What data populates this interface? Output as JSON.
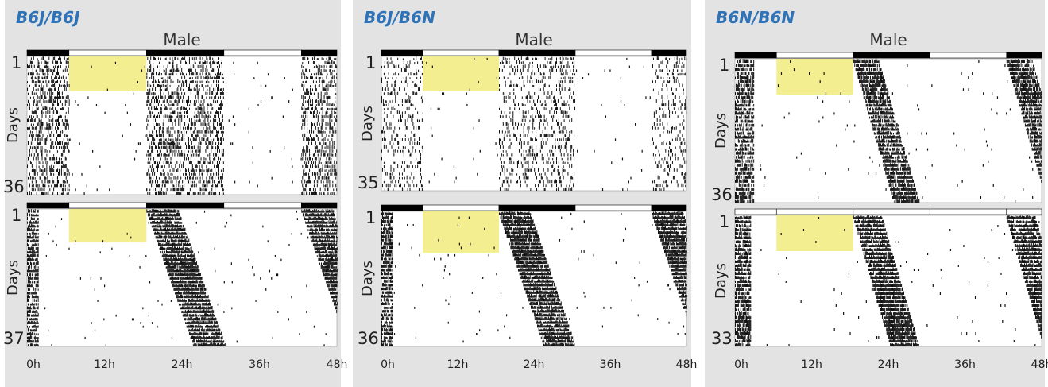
{
  "chart_data": {
    "type": "actogram",
    "x_ticks": [
      "0h",
      "12h",
      "24h",
      "36h",
      "48h"
    ],
    "x_tick_hours": [
      0,
      12,
      24,
      36,
      48
    ],
    "x_range_hours": [
      0,
      48
    ],
    "ylabel": "Days",
    "condition_label": "Male",
    "colors": {
      "genotype_title": "#2e73b8",
      "activity": "#111111",
      "highlight": "#f1ec7d",
      "dark_bar": "#000000",
      "light_bar": "#ffffff",
      "panel_background": "#e3e3e3"
    },
    "panels": [
      {
        "genotype": "B6J/B6J",
        "plots": [
          {
            "first_day": "1",
            "last_day": "36",
            "days": 36,
            "lighting_bar": [
              [
                0,
                6.5,
                "dark"
              ],
              [
                6.5,
                18.5,
                "light"
              ],
              [
                18.5,
                30.5,
                "dark"
              ],
              [
                30.5,
                42.5,
                "light"
              ],
              [
                42.5,
                48,
                "dark"
              ]
            ],
            "highlight": {
              "hours": [
                6.5,
                18.5
              ],
              "days": [
                1,
                9
              ]
            },
            "activity_blocks": [
              [
                18.5,
                30.5,
                0.35,
                0.0
              ],
              [
                42.5,
                48,
                0.35,
                0.0
              ],
              [
                0,
                6.5,
                0.35,
                0.0
              ]
            ]
          },
          {
            "first_day": "1",
            "last_day": "37",
            "days": 37,
            "lighting_bar": [
              [
                0,
                6.5,
                "dark"
              ],
              [
                6.5,
                18.5,
                "light"
              ],
              [
                18.5,
                30.5,
                "dark"
              ],
              [
                30.5,
                42.5,
                "light"
              ],
              [
                42.5,
                48,
                "dark"
              ]
            ],
            "highlight": {
              "hours": [
                6.5,
                18.5
              ],
              "days": [
                1,
                9
              ]
            },
            "activity_blocks": [
              [
                18.5,
                23.5,
                0.95,
                0.2
              ],
              [
                42.5,
                47.5,
                0.95,
                0.2
              ],
              [
                0,
                1.8,
                0.8,
                0.0
              ]
            ]
          }
        ]
      },
      {
        "genotype": "B6J/B6N",
        "plots": [
          {
            "first_day": "1",
            "last_day": "35",
            "days": 35,
            "lighting_bar": [
              [
                0,
                6.5,
                "dark"
              ],
              [
                6.5,
                18.5,
                "light"
              ],
              [
                18.5,
                30.5,
                "dark"
              ],
              [
                30.5,
                42.5,
                "light"
              ],
              [
                42.5,
                48,
                "dark"
              ]
            ],
            "highlight": {
              "hours": [
                6.5,
                18.5
              ],
              "days": [
                1,
                9
              ]
            },
            "activity_blocks": [
              [
                18.5,
                30.5,
                0.18,
                0.0
              ],
              [
                42.5,
                48,
                0.18,
                0.0
              ],
              [
                0,
                6.5,
                0.18,
                0.0
              ]
            ]
          },
          {
            "first_day": "1",
            "last_day": "36",
            "days": 36,
            "lighting_bar": [
              [
                0,
                6.5,
                "dark"
              ],
              [
                6.5,
                18.5,
                "light"
              ],
              [
                18.5,
                30.5,
                "dark"
              ],
              [
                30.5,
                42.5,
                "light"
              ],
              [
                42.5,
                48,
                "dark"
              ]
            ],
            "highlight": {
              "hours": [
                6.5,
                18.5
              ],
              "days": [
                1,
                11
              ]
            },
            "activity_blocks": [
              [
                18.5,
                23.5,
                0.95,
                0.2
              ],
              [
                42.5,
                47.5,
                0.95,
                0.2
              ],
              [
                0,
                1.8,
                0.8,
                0.0
              ]
            ]
          }
        ]
      },
      {
        "genotype": "B6N/B6N",
        "plots": [
          {
            "first_day": "1",
            "last_day": "36",
            "days": 36,
            "lighting_bar": [
              [
                0,
                6.5,
                "dark"
              ],
              [
                6.5,
                18.5,
                "light"
              ],
              [
                18.5,
                30.5,
                "dark"
              ],
              [
                30.5,
                42.5,
                "light"
              ],
              [
                42.5,
                48,
                "dark"
              ]
            ],
            "highlight": {
              "hours": [
                6.5,
                18.5
              ],
              "days": [
                1,
                9
              ]
            },
            "activity_blocks": [
              [
                18.5,
                22.5,
                0.85,
                0.18
              ],
              [
                42.5,
                46.5,
                0.85,
                0.18
              ],
              [
                0,
                3.0,
                0.7,
                0.0
              ]
            ]
          },
          {
            "first_day": "1",
            "last_day": "33",
            "days": 33,
            "lighting_bar": [
              [
                0,
                6.5,
                "light"
              ],
              [
                6.5,
                18.5,
                "light"
              ],
              [
                18.5,
                30.5,
                "light"
              ],
              [
                30.5,
                42.5,
                "light"
              ],
              [
                42.5,
                48,
                "light"
              ]
            ],
            "highlight": {
              "hours": [
                6.5,
                18.5
              ],
              "days": [
                1,
                9
              ]
            },
            "activity_blocks": [
              [
                18.5,
                23.0,
                0.95,
                0.18
              ],
              [
                42.5,
                47.0,
                0.95,
                0.18
              ],
              [
                0,
                2.5,
                0.8,
                0.0
              ]
            ]
          }
        ]
      }
    ]
  }
}
